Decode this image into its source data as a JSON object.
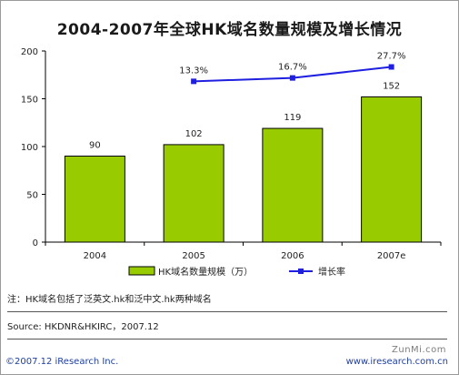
{
  "title": "2004-2007年全球HK域名数量规模及增长情况",
  "chart_data": {
    "type": "bar",
    "categories": [
      "2004",
      "2005",
      "2006",
      "2007e"
    ],
    "series": [
      {
        "name": "HK域名数量规模（万）",
        "type": "bar",
        "values": [
          90,
          102,
          119,
          152
        ],
        "value_labels": [
          "90",
          "102",
          "119",
          "152"
        ]
      },
      {
        "name": "增长率",
        "type": "line",
        "values": [
          null,
          13.3,
          16.7,
          27.7
        ],
        "value_labels": [
          "",
          "13.3%",
          "16.7%",
          "27.7%"
        ]
      }
    ],
    "y_ticks": [
      "0",
      "50",
      "100",
      "150",
      "200"
    ],
    "ylim": [
      0,
      200
    ],
    "grid": false,
    "legend_position": "bottom",
    "colors": {
      "bar": "#99cc00",
      "bar_stroke": "#000000",
      "line": "#1f1fe0"
    }
  },
  "note": "注：HK域名包括了泛英文.hk和泛中文.hk两种域名",
  "source": "Source: HKDNR&HKIRC，2007.12",
  "copyright": "©2007.12 iResearch Inc.",
  "website": "www.iresearch.com.cn",
  "watermark": "ZunMi.com"
}
